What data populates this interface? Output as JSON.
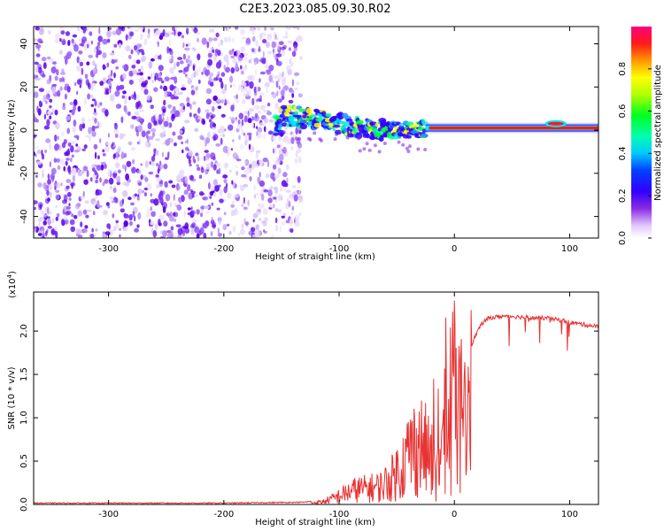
{
  "title": "C2E3.2023.085.09.30.R02",
  "chart_data": [
    {
      "type": "heatmap",
      "name": "spectrogram",
      "xlabel": "Height of straight line (km)",
      "ylabel": "Frequency (Hz)",
      "xlim": [
        -365,
        125
      ],
      "ylim": [
        -50,
        48
      ],
      "xticks": [
        -300,
        -200,
        -100,
        0,
        100
      ],
      "yticks": [
        -40,
        -20,
        0,
        20,
        40
      ],
      "colorbar": {
        "label": "Normalized spectral amplitude",
        "range": [
          0,
          1
        ],
        "ticks": [
          0.0,
          0.2,
          0.4,
          0.6,
          0.8
        ]
      },
      "noise_region_end_km": -133,
      "signal_track": [
        {
          "x": -150,
          "f": 7
        },
        {
          "x": -120,
          "f": 5
        },
        {
          "x": -100,
          "f": 3
        },
        {
          "x": -80,
          "f": 1
        },
        {
          "x": -60,
          "f": 0
        },
        {
          "x": -40,
          "f": 0
        },
        {
          "x": -20,
          "f": 1
        },
        {
          "x": 0,
          "f": 1
        },
        {
          "x": 50,
          "f": 1
        },
        {
          "x": 85,
          "f": 3
        },
        {
          "x": 100,
          "f": 1
        },
        {
          "x": 125,
          "f": 2
        }
      ]
    },
    {
      "type": "line",
      "name": "snr",
      "xlabel": "Height of straight line (km)",
      "ylabel": "SNR (10 * v/v)",
      "y_multiplier": "(x10",
      "y_multiplier_exp": "4",
      "y_multiplier_close": ")",
      "xlim": [
        -365,
        125
      ],
      "ylim": [
        0,
        2.45
      ],
      "xticks": [
        -300,
        -200,
        -100,
        0,
        100
      ],
      "yticks": [
        0.0,
        0.5,
        1.0,
        1.5,
        2.0
      ],
      "ytick_labels": [
        "0.0",
        "0.5",
        "1.0",
        "1.5",
        "2.0"
      ],
      "color": "#e83232",
      "series": [
        {
          "name": "SNR",
          "x": [
            -365,
            -300,
            -200,
            -130,
            -115,
            -105,
            -95,
            -85,
            -75,
            -65,
            -55,
            -45,
            -38,
            -30,
            -22,
            -15,
            -8,
            -3,
            0,
            5,
            10,
            15,
            20,
            25,
            30,
            40,
            50,
            60,
            70,
            80,
            90,
            95,
            100,
            110,
            120,
            125
          ],
          "y": [
            0.01,
            0.01,
            0.01,
            0.02,
            0.05,
            0.12,
            0.22,
            0.3,
            0.32,
            0.35,
            0.5,
            0.8,
            1.1,
            1.2,
            1.0,
            0.6,
            1.5,
            1.6,
            1.6,
            1.7,
            1.2,
            1.85,
            2.0,
            2.1,
            2.15,
            2.17,
            2.17,
            2.16,
            2.15,
            2.15,
            2.13,
            2.12,
            2.1,
            2.08,
            2.06,
            2.05
          ]
        }
      ]
    }
  ]
}
